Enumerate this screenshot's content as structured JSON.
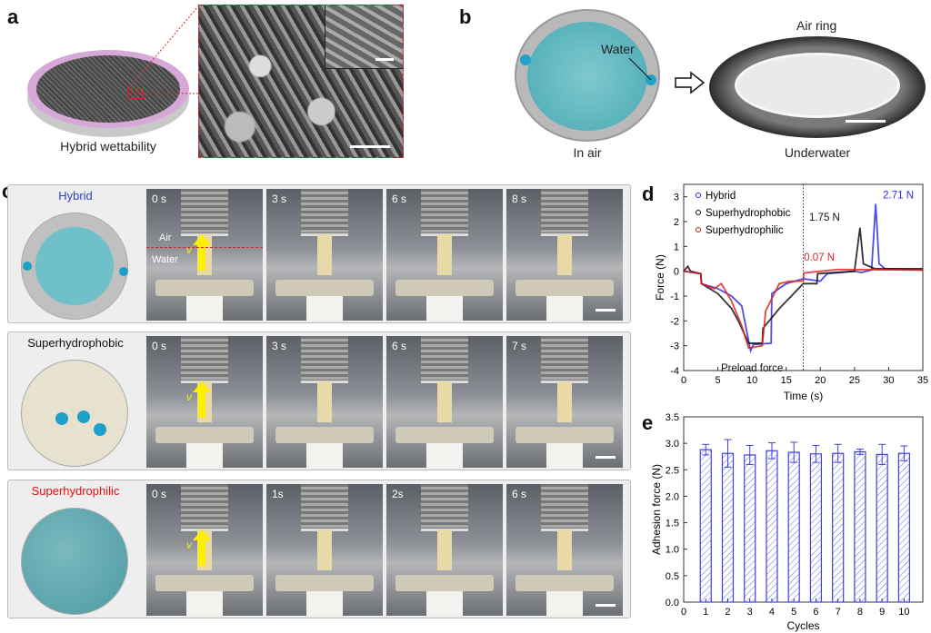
{
  "panel_a": {
    "label": "a",
    "caption": "Hybrid wettability"
  },
  "panel_b": {
    "label": "b",
    "water_label": "Water",
    "in_air": "In air",
    "air_ring": "Air ring",
    "underwater": "Underwater"
  },
  "panel_c": {
    "label": "c",
    "rows": [
      {
        "title": "Hybrid",
        "title_color": "#2a3fd6",
        "times": [
          "0 s",
          "3 s",
          "6 s",
          "8 s"
        ],
        "disc": "hybrid"
      },
      {
        "title": "Superhydrophobic",
        "title_color": "#111111",
        "times": [
          "0 s",
          "3 s",
          "6 s",
          "7 s"
        ],
        "disc": "phobic"
      },
      {
        "title": "Superhydrophilic",
        "title_color": "#e01010",
        "times": [
          "0 s",
          "1s",
          "2s",
          "6 s"
        ],
        "disc": "philic"
      }
    ],
    "air_label": "Air",
    "water_label": "Water",
    "velocity_label": "v"
  },
  "chart_data": [
    {
      "panel": "d",
      "type": "line",
      "xlabel": "Time (s)",
      "ylabel": "Force (N)",
      "xlim": [
        0,
        35
      ],
      "ylim": [
        -4,
        3.5
      ],
      "xticks": [
        0,
        5,
        10,
        15,
        20,
        25,
        30,
        35
      ],
      "yticks": [
        -4,
        -3,
        -2,
        -1,
        0,
        1,
        2,
        3
      ],
      "legend_position": "top-left",
      "divider_x": 17.5,
      "series": [
        {
          "name": "Hybrid",
          "color": "#3030e0",
          "points": [
            [
              0,
              0
            ],
            [
              2.5,
              -0.1
            ],
            [
              2.6,
              -0.5
            ],
            [
              5,
              -0.7
            ],
            [
              7,
              -1.0
            ],
            [
              8.5,
              -1.4
            ],
            [
              9.5,
              -2.8
            ],
            [
              9.8,
              -3.2
            ],
            [
              10.2,
              -2.95
            ],
            [
              12.8,
              -2.9
            ],
            [
              12.9,
              -0.9
            ],
            [
              15,
              -0.5
            ],
            [
              17.5,
              -0.3
            ],
            [
              20,
              -0.4
            ],
            [
              21,
              -0.1
            ],
            [
              25,
              0
            ],
            [
              26,
              -0.05
            ],
            [
              27.5,
              0.05
            ],
            [
              28.1,
              2.71
            ],
            [
              28.6,
              0.3
            ],
            [
              29.5,
              0.1
            ],
            [
              35,
              0.05
            ]
          ]
        },
        {
          "name": "Superhydrophobic",
          "color": "#111111",
          "points": [
            [
              0,
              0
            ],
            [
              0.6,
              0.2
            ],
            [
              1,
              0
            ],
            [
              2.5,
              -0.1
            ],
            [
              2.6,
              -0.5
            ],
            [
              5,
              -0.9
            ],
            [
              7,
              -1.5
            ],
            [
              8,
              -2.0
            ],
            [
              9.5,
              -2.9
            ],
            [
              11.5,
              -2.9
            ],
            [
              11.6,
              -2.3
            ],
            [
              14,
              -1.5
            ],
            [
              17.5,
              -0.5
            ],
            [
              19.5,
              -0.5
            ],
            [
              19.6,
              -0.1
            ],
            [
              25,
              0
            ],
            [
              25.8,
              1.75
            ],
            [
              26.3,
              0.3
            ],
            [
              28,
              0.1
            ],
            [
              35,
              0.1
            ]
          ]
        },
        {
          "name": "Superhydrophilic",
          "color": "#e02020",
          "points": [
            [
              0,
              0
            ],
            [
              2.5,
              -0.1
            ],
            [
              2.6,
              -0.5
            ],
            [
              4.5,
              -0.7
            ],
            [
              5.5,
              -0.5
            ],
            [
              7,
              -1.2
            ],
            [
              8.5,
              -2.2
            ],
            [
              9.5,
              -3.1
            ],
            [
              11.5,
              -3.0
            ],
            [
              12,
              -1.6
            ],
            [
              14,
              -0.5
            ],
            [
              15.5,
              -0.4
            ],
            [
              17.5,
              -0.4
            ],
            [
              17.6,
              -0.07
            ],
            [
              22.5,
              0.07
            ],
            [
              35,
              0.05
            ]
          ]
        }
      ],
      "annotations": [
        {
          "text": "2.71 N",
          "x": 28.1,
          "y": 2.71,
          "color": "#3030e0"
        },
        {
          "text": "1.75 N",
          "x": 25.8,
          "y": 1.75,
          "color": "#111111"
        },
        {
          "text": "0.07 N",
          "x": 22.5,
          "y": 0.07,
          "color": "#e02020"
        },
        {
          "text": "Preload force",
          "x": 10,
          "y": -3.6,
          "color": "#111111"
        }
      ]
    },
    {
      "panel": "e",
      "type": "bar",
      "xlabel": "Cycles",
      "ylabel": "Adhesion force (N)",
      "xlim": [
        0,
        10.85
      ],
      "ylim": [
        0,
        3.5
      ],
      "xticks": [
        0,
        1,
        2,
        3,
        4,
        5,
        6,
        7,
        8,
        9,
        10
      ],
      "yticks": [
        "0.0",
        "0.5",
        "1.0",
        "1.5",
        "2.0",
        "2.5",
        "3.0",
        "3.5"
      ],
      "color": "#4040e0",
      "categories": [
        1,
        2,
        3,
        4,
        5,
        6,
        7,
        8,
        9,
        10
      ],
      "values": [
        2.88,
        2.81,
        2.78,
        2.86,
        2.83,
        2.8,
        2.81,
        2.84,
        2.79,
        2.81
      ],
      "errors": [
        0.1,
        0.26,
        0.18,
        0.15,
        0.19,
        0.16,
        0.17,
        0.05,
        0.19,
        0.14
      ]
    }
  ],
  "panel_d_label": "d",
  "panel_e_label": "e"
}
